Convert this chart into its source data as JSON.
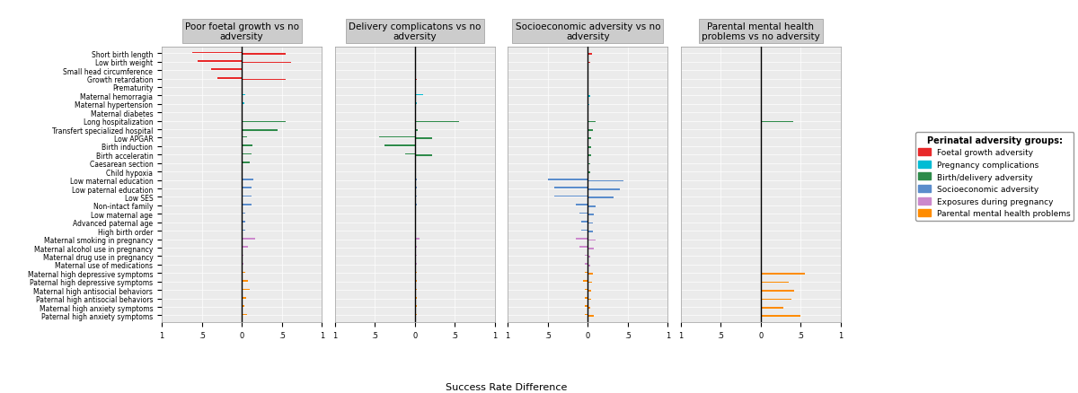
{
  "y_labels": [
    "Short birth length",
    "Low birth weight",
    "Small head circumference",
    "Growth retardation",
    "Prematurity",
    "Maternal hemorragia",
    "Maternal hypertension",
    "Maternal diabetes",
    "Long hospitalization",
    "Transfert specialized hospital",
    "Low APGAR",
    "Birth induction",
    "Birth acceleratin",
    "Caesarean section",
    "Child hypoxia",
    "Low maternal education",
    "Low paternal education",
    "Low SES",
    "Non-intact family",
    "Low maternal age",
    "Advanced paternal age",
    "High birth order",
    "Maternal smoking in pregnancy",
    "Maternal alcohol use in pregnancy",
    "Maternal drug use in pregnancy",
    "Maternal use of medications",
    "Maternal high depressive symptoms",
    "Paternal high depressive symptoms",
    "Maternal high antisocial behaviors",
    "Paternal high antisocial behaviors",
    "Maternal high anxiety symptoms",
    "Paternal high anxiety symptoms"
  ],
  "colors": {
    "foetal": "#E8292A",
    "pregnancy": "#00BCD4",
    "birth": "#2E8B4A",
    "socioeconomic": "#5B8DCC",
    "exposure": "#CC88CC",
    "parental": "#FF8C00"
  },
  "panels": [
    {
      "title": "Poor foetal growth vs no\nadversity",
      "bars": [
        {
          "row": 0,
          "qlscd": -0.62,
          "alspac": 0.55,
          "color": "foetal"
        },
        {
          "row": 1,
          "qlscd": -0.55,
          "alspac": 0.62,
          "color": "foetal"
        },
        {
          "row": 2,
          "qlscd": -0.38,
          "alspac": 0.0,
          "color": "foetal"
        },
        {
          "row": 3,
          "qlscd": -0.3,
          "alspac": 0.55,
          "color": "foetal"
        },
        {
          "row": 4,
          "qlscd": 0.0,
          "alspac": 0.0,
          "color": "foetal"
        },
        {
          "row": 5,
          "qlscd": 0.04,
          "alspac": 0.0,
          "color": "pregnancy"
        },
        {
          "row": 6,
          "qlscd": 0.03,
          "alspac": 0.0,
          "color": "pregnancy"
        },
        {
          "row": 7,
          "qlscd": 0.0,
          "alspac": 0.0,
          "color": "pregnancy"
        },
        {
          "row": 8,
          "qlscd": 0.0,
          "alspac": 0.55,
          "color": "birth"
        },
        {
          "row": 9,
          "qlscd": 0.0,
          "alspac": 0.45,
          "color": "birth"
        },
        {
          "row": 10,
          "qlscd": 0.07,
          "alspac": 0.0,
          "color": "birth"
        },
        {
          "row": 11,
          "qlscd": 0.13,
          "alspac": 0.0,
          "color": "birth"
        },
        {
          "row": 12,
          "qlscd": 0.12,
          "alspac": 0.0,
          "color": "birth"
        },
        {
          "row": 13,
          "qlscd": 0.1,
          "alspac": 0.0,
          "color": "birth"
        },
        {
          "row": 14,
          "qlscd": 0.0,
          "alspac": 0.0,
          "color": "birth"
        },
        {
          "row": 15,
          "qlscd": 0.14,
          "alspac": 0.0,
          "color": "socioeconomic"
        },
        {
          "row": 16,
          "qlscd": 0.12,
          "alspac": 0.0,
          "color": "socioeconomic"
        },
        {
          "row": 17,
          "qlscd": 0.12,
          "alspac": 0.0,
          "color": "socioeconomic"
        },
        {
          "row": 18,
          "qlscd": 0.12,
          "alspac": 0.0,
          "color": "socioeconomic"
        },
        {
          "row": 19,
          "qlscd": 0.04,
          "alspac": 0.0,
          "color": "socioeconomic"
        },
        {
          "row": 20,
          "qlscd": 0.04,
          "alspac": 0.0,
          "color": "socioeconomic"
        },
        {
          "row": 21,
          "qlscd": 0.04,
          "alspac": 0.0,
          "color": "socioeconomic"
        },
        {
          "row": 22,
          "qlscd": 0.17,
          "alspac": 0.0,
          "color": "exposure"
        },
        {
          "row": 23,
          "qlscd": 0.08,
          "alspac": 0.0,
          "color": "exposure"
        },
        {
          "row": 24,
          "qlscd": 0.02,
          "alspac": 0.0,
          "color": "exposure"
        },
        {
          "row": 25,
          "qlscd": 0.02,
          "alspac": 0.0,
          "color": "exposure"
        },
        {
          "row": 26,
          "qlscd": 0.04,
          "alspac": 0.0,
          "color": "parental"
        },
        {
          "row": 27,
          "qlscd": 0.08,
          "alspac": 0.0,
          "color": "parental"
        },
        {
          "row": 28,
          "qlscd": 0.1,
          "alspac": 0.0,
          "color": "parental"
        },
        {
          "row": 29,
          "qlscd": 0.06,
          "alspac": 0.0,
          "color": "parental"
        },
        {
          "row": 30,
          "qlscd": 0.03,
          "alspac": 0.0,
          "color": "parental"
        },
        {
          "row": 31,
          "qlscd": 0.07,
          "alspac": 0.0,
          "color": "parental"
        }
      ]
    },
    {
      "title": "Delivery complicatons vs no\nadversity",
      "bars": [
        {
          "row": 0,
          "qlscd": 0.0,
          "alspac": 0.0,
          "color": "foetal"
        },
        {
          "row": 1,
          "qlscd": 0.0,
          "alspac": 0.01,
          "color": "foetal"
        },
        {
          "row": 2,
          "qlscd": 0.0,
          "alspac": 0.0,
          "color": "foetal"
        },
        {
          "row": 3,
          "qlscd": 0.0,
          "alspac": 0.02,
          "color": "foetal"
        },
        {
          "row": 4,
          "qlscd": 0.0,
          "alspac": 0.0,
          "color": "foetal"
        },
        {
          "row": 5,
          "qlscd": 0.1,
          "alspac": 0.0,
          "color": "pregnancy"
        },
        {
          "row": 6,
          "qlscd": 0.03,
          "alspac": 0.0,
          "color": "pregnancy"
        },
        {
          "row": 7,
          "qlscd": 0.0,
          "alspac": 0.0,
          "color": "pregnancy"
        },
        {
          "row": 8,
          "qlscd": 0.0,
          "alspac": 0.55,
          "color": "birth"
        },
        {
          "row": 9,
          "qlscd": 0.0,
          "alspac": 0.04,
          "color": "birth"
        },
        {
          "row": 10,
          "qlscd": -0.45,
          "alspac": 0.22,
          "color": "birth"
        },
        {
          "row": 11,
          "qlscd": -0.38,
          "alspac": 0.0,
          "color": "birth"
        },
        {
          "row": 12,
          "qlscd": -0.12,
          "alspac": 0.22,
          "color": "birth"
        },
        {
          "row": 13,
          "qlscd": 0.0,
          "alspac": 0.0,
          "color": "birth"
        },
        {
          "row": 14,
          "qlscd": 0.0,
          "alspac": 0.0,
          "color": "birth"
        },
        {
          "row": 15,
          "qlscd": 0.03,
          "alspac": 0.0,
          "color": "socioeconomic"
        },
        {
          "row": 16,
          "qlscd": 0.02,
          "alspac": 0.0,
          "color": "socioeconomic"
        },
        {
          "row": 17,
          "qlscd": 0.02,
          "alspac": 0.0,
          "color": "socioeconomic"
        },
        {
          "row": 18,
          "qlscd": 0.02,
          "alspac": 0.0,
          "color": "socioeconomic"
        },
        {
          "row": 19,
          "qlscd": 0.0,
          "alspac": 0.0,
          "color": "socioeconomic"
        },
        {
          "row": 20,
          "qlscd": 0.0,
          "alspac": 0.0,
          "color": "socioeconomic"
        },
        {
          "row": 21,
          "qlscd": 0.0,
          "alspac": 0.0,
          "color": "socioeconomic"
        },
        {
          "row": 22,
          "qlscd": 0.06,
          "alspac": 0.0,
          "color": "exposure"
        },
        {
          "row": 23,
          "qlscd": 0.02,
          "alspac": 0.0,
          "color": "exposure"
        },
        {
          "row": 24,
          "qlscd": 0.02,
          "alspac": 0.0,
          "color": "exposure"
        },
        {
          "row": 25,
          "qlscd": 0.02,
          "alspac": 0.0,
          "color": "exposure"
        },
        {
          "row": 26,
          "qlscd": 0.02,
          "alspac": 0.0,
          "color": "parental"
        },
        {
          "row": 27,
          "qlscd": 0.02,
          "alspac": 0.0,
          "color": "parental"
        },
        {
          "row": 28,
          "qlscd": 0.02,
          "alspac": 0.0,
          "color": "parental"
        },
        {
          "row": 29,
          "qlscd": 0.02,
          "alspac": 0.0,
          "color": "parental"
        },
        {
          "row": 30,
          "qlscd": 0.02,
          "alspac": 0.0,
          "color": "parental"
        },
        {
          "row": 31,
          "qlscd": 0.02,
          "alspac": 0.0,
          "color": "parental"
        }
      ]
    },
    {
      "title": "Socioeconomic adversity vs no\nadversity",
      "bars": [
        {
          "row": 0,
          "qlscd": 0.0,
          "alspac": 0.05,
          "color": "foetal"
        },
        {
          "row": 1,
          "qlscd": 0.0,
          "alspac": 0.03,
          "color": "foetal"
        },
        {
          "row": 2,
          "qlscd": 0.0,
          "alspac": 0.0,
          "color": "foetal"
        },
        {
          "row": 3,
          "qlscd": 0.0,
          "alspac": 0.0,
          "color": "foetal"
        },
        {
          "row": 4,
          "qlscd": 0.0,
          "alspac": 0.0,
          "color": "foetal"
        },
        {
          "row": 5,
          "qlscd": 0.0,
          "alspac": 0.03,
          "color": "pregnancy"
        },
        {
          "row": 6,
          "qlscd": 0.0,
          "alspac": 0.02,
          "color": "pregnancy"
        },
        {
          "row": 7,
          "qlscd": 0.0,
          "alspac": 0.0,
          "color": "pregnancy"
        },
        {
          "row": 8,
          "qlscd": 0.0,
          "alspac": 0.1,
          "color": "birth"
        },
        {
          "row": 9,
          "qlscd": 0.0,
          "alspac": 0.06,
          "color": "birth"
        },
        {
          "row": 10,
          "qlscd": 0.0,
          "alspac": 0.04,
          "color": "birth"
        },
        {
          "row": 11,
          "qlscd": 0.0,
          "alspac": 0.04,
          "color": "birth"
        },
        {
          "row": 12,
          "qlscd": 0.0,
          "alspac": 0.04,
          "color": "birth"
        },
        {
          "row": 13,
          "qlscd": 0.0,
          "alspac": 0.03,
          "color": "birth"
        },
        {
          "row": 14,
          "qlscd": 0.0,
          "alspac": 0.03,
          "color": "birth"
        },
        {
          "row": 15,
          "qlscd": -0.5,
          "alspac": 0.45,
          "color": "socioeconomic"
        },
        {
          "row": 16,
          "qlscd": -0.42,
          "alspac": 0.4,
          "color": "socioeconomic"
        },
        {
          "row": 17,
          "qlscd": -0.42,
          "alspac": 0.32,
          "color": "socioeconomic"
        },
        {
          "row": 18,
          "qlscd": -0.15,
          "alspac": 0.1,
          "color": "socioeconomic"
        },
        {
          "row": 19,
          "qlscd": -0.1,
          "alspac": 0.08,
          "color": "socioeconomic"
        },
        {
          "row": 20,
          "qlscd": -0.08,
          "alspac": 0.06,
          "color": "socioeconomic"
        },
        {
          "row": 21,
          "qlscd": -0.08,
          "alspac": 0.06,
          "color": "socioeconomic"
        },
        {
          "row": 22,
          "qlscd": -0.15,
          "alspac": 0.1,
          "color": "exposure"
        },
        {
          "row": 23,
          "qlscd": -0.1,
          "alspac": 0.07,
          "color": "exposure"
        },
        {
          "row": 24,
          "qlscd": -0.04,
          "alspac": 0.03,
          "color": "exposure"
        },
        {
          "row": 25,
          "qlscd": -0.04,
          "alspac": 0.03,
          "color": "exposure"
        },
        {
          "row": 26,
          "qlscd": -0.04,
          "alspac": 0.06,
          "color": "parental"
        },
        {
          "row": 27,
          "qlscd": -0.06,
          "alspac": 0.05,
          "color": "parental"
        },
        {
          "row": 28,
          "qlscd": -0.04,
          "alspac": 0.04,
          "color": "parental"
        },
        {
          "row": 29,
          "qlscd": -0.04,
          "alspac": 0.04,
          "color": "parental"
        },
        {
          "row": 30,
          "qlscd": -0.04,
          "alspac": 0.03,
          "color": "parental"
        },
        {
          "row": 31,
          "qlscd": -0.04,
          "alspac": 0.08,
          "color": "parental"
        }
      ]
    },
    {
      "title": "Parental mental health\nproblems vs no adversity",
      "bars": [
        {
          "row": 0,
          "qlscd": 0.0,
          "alspac": 0.0,
          "color": "foetal"
        },
        {
          "row": 1,
          "qlscd": 0.0,
          "alspac": 0.0,
          "color": "foetal"
        },
        {
          "row": 2,
          "qlscd": 0.0,
          "alspac": 0.0,
          "color": "foetal"
        },
        {
          "row": 3,
          "qlscd": 0.0,
          "alspac": 0.0,
          "color": "foetal"
        },
        {
          "row": 4,
          "qlscd": 0.0,
          "alspac": 0.0,
          "color": "foetal"
        },
        {
          "row": 5,
          "qlscd": 0.0,
          "alspac": 0.0,
          "color": "pregnancy"
        },
        {
          "row": 6,
          "qlscd": 0.0,
          "alspac": 0.0,
          "color": "pregnancy"
        },
        {
          "row": 7,
          "qlscd": 0.0,
          "alspac": 0.0,
          "color": "pregnancy"
        },
        {
          "row": 8,
          "qlscd": 0.0,
          "alspac": 0.4,
          "color": "birth"
        },
        {
          "row": 9,
          "qlscd": 0.0,
          "alspac": 0.0,
          "color": "birth"
        },
        {
          "row": 10,
          "qlscd": 0.0,
          "alspac": 0.0,
          "color": "birth"
        },
        {
          "row": 11,
          "qlscd": 0.0,
          "alspac": 0.0,
          "color": "birth"
        },
        {
          "row": 12,
          "qlscd": 0.0,
          "alspac": 0.0,
          "color": "birth"
        },
        {
          "row": 13,
          "qlscd": 0.0,
          "alspac": 0.0,
          "color": "birth"
        },
        {
          "row": 14,
          "qlscd": 0.0,
          "alspac": 0.0,
          "color": "birth"
        },
        {
          "row": 15,
          "qlscd": 0.0,
          "alspac": 0.0,
          "color": "socioeconomic"
        },
        {
          "row": 16,
          "qlscd": 0.0,
          "alspac": 0.0,
          "color": "socioeconomic"
        },
        {
          "row": 17,
          "qlscd": 0.0,
          "alspac": 0.0,
          "color": "socioeconomic"
        },
        {
          "row": 18,
          "qlscd": 0.0,
          "alspac": 0.0,
          "color": "socioeconomic"
        },
        {
          "row": 19,
          "qlscd": 0.0,
          "alspac": 0.0,
          "color": "socioeconomic"
        },
        {
          "row": 20,
          "qlscd": 0.0,
          "alspac": 0.0,
          "color": "socioeconomic"
        },
        {
          "row": 21,
          "qlscd": 0.0,
          "alspac": 0.0,
          "color": "socioeconomic"
        },
        {
          "row": 22,
          "qlscd": 0.0,
          "alspac": 0.0,
          "color": "exposure"
        },
        {
          "row": 23,
          "qlscd": 0.0,
          "alspac": 0.0,
          "color": "exposure"
        },
        {
          "row": 24,
          "qlscd": 0.0,
          "alspac": 0.0,
          "color": "exposure"
        },
        {
          "row": 25,
          "qlscd": 0.0,
          "alspac": 0.0,
          "color": "exposure"
        },
        {
          "row": 26,
          "qlscd": 0.0,
          "alspac": 0.55,
          "color": "parental"
        },
        {
          "row": 27,
          "qlscd": 0.0,
          "alspac": 0.35,
          "color": "parental"
        },
        {
          "row": 28,
          "qlscd": 0.0,
          "alspac": 0.42,
          "color": "parental"
        },
        {
          "row": 29,
          "qlscd": 0.0,
          "alspac": 0.38,
          "color": "parental"
        },
        {
          "row": 30,
          "qlscd": 0.0,
          "alspac": 0.28,
          "color": "parental"
        },
        {
          "row": 31,
          "qlscd": 0.0,
          "alspac": 0.5,
          "color": "parental"
        }
      ]
    }
  ],
  "legend": {
    "title": "Perinatal adversity groups:",
    "entries": [
      {
        "label": "Foetal growth adversity",
        "color": "#E8292A"
      },
      {
        "label": "Pregnancy complications",
        "color": "#00BCD4"
      },
      {
        "label": "Birth/delivery adversity",
        "color": "#2E8B4A"
      },
      {
        "label": "Socioeconomic adversity",
        "color": "#5B8DCC"
      },
      {
        "label": "Exposures during pregnancy",
        "color": "#CC88CC"
      },
      {
        "label": "Parental mental health problems",
        "color": "#FF8C00"
      }
    ]
  },
  "xlim": [
    -1.0,
    1.0
  ],
  "xticks": [
    -1.0,
    -0.5,
    0.0,
    0.5,
    1.0
  ],
  "bar_height": 0.35,
  "background_color": "#EBEBEB",
  "xlabel": "Success Rate Difference"
}
